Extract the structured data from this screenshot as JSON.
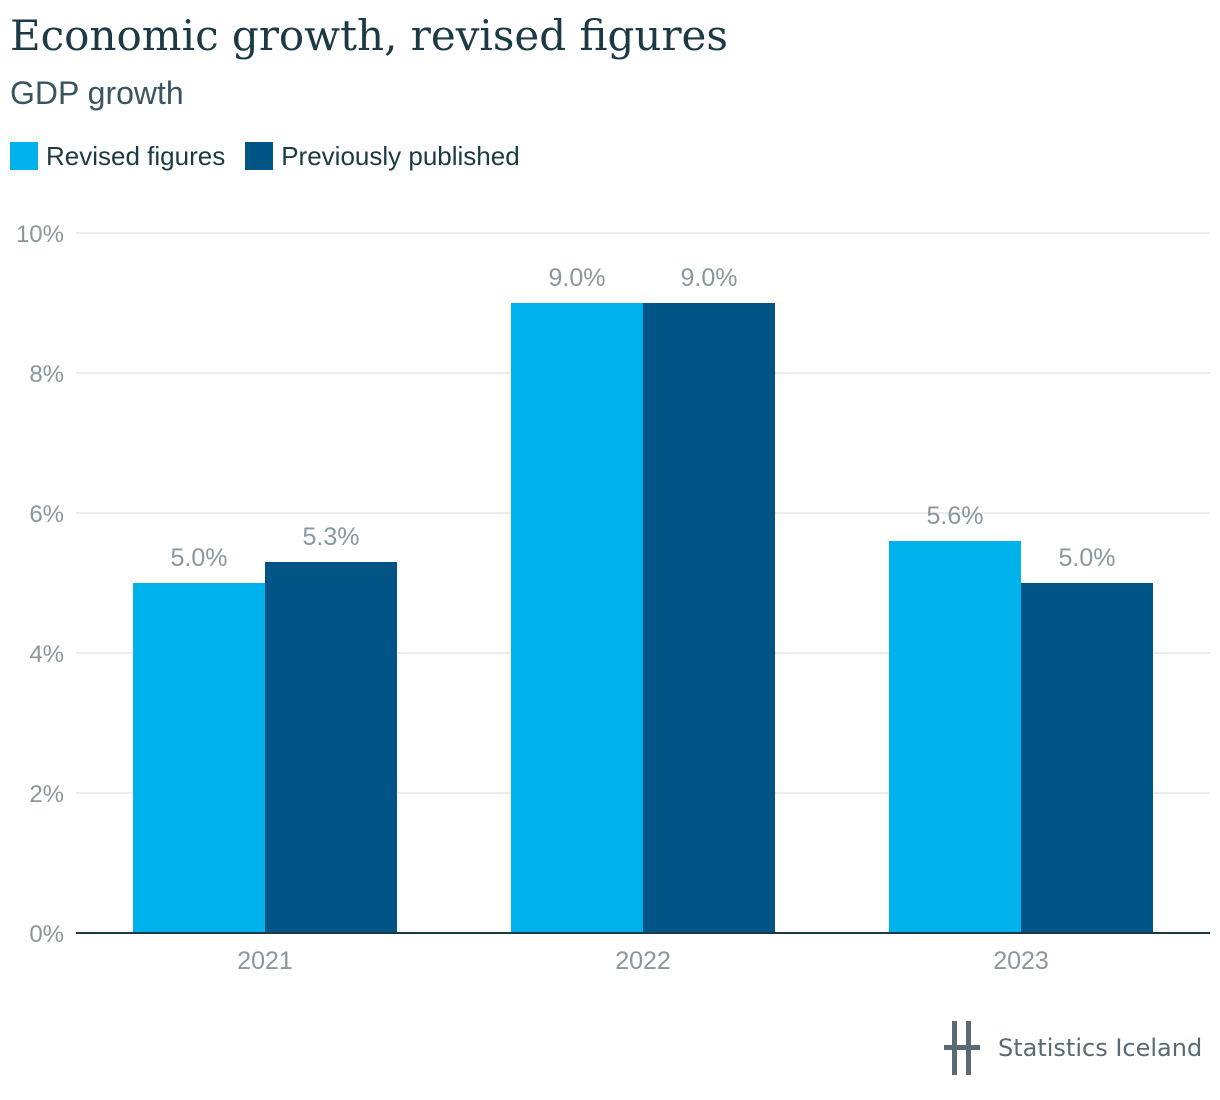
{
  "title": "Economic growth, revised figures",
  "subtitle": "GDP growth",
  "source": "Statistics Iceland",
  "chart_data": {
    "type": "bar",
    "title": "Economic growth, revised figures",
    "subtitle": "GDP growth",
    "xlabel": "",
    "ylabel": "",
    "categories": [
      "2021",
      "2022",
      "2023"
    ],
    "series": [
      {
        "name": "Revised figures",
        "color": "#00b2eb",
        "values": [
          5.0,
          9.0,
          5.6
        ],
        "labels": [
          "5.0%",
          "9.0%",
          "5.6%"
        ]
      },
      {
        "name": "Previously published",
        "color": "#005586",
        "values": [
          5.3,
          9.0,
          5.0
        ],
        "labels": [
          "5.3%",
          "9.0%",
          "5.0%"
        ]
      }
    ],
    "ylim": [
      0,
      10
    ],
    "yticks": [
      0,
      2,
      4,
      6,
      8,
      10
    ],
    "ytick_labels": [
      "0%",
      "2%",
      "4%",
      "6%",
      "8%",
      "10%"
    ],
    "grid": true,
    "legend_position": "top-left",
    "axis_color": "#1b3a44",
    "grid_color": "#e3e6e8",
    "tick_label_color": "#8a979e"
  }
}
